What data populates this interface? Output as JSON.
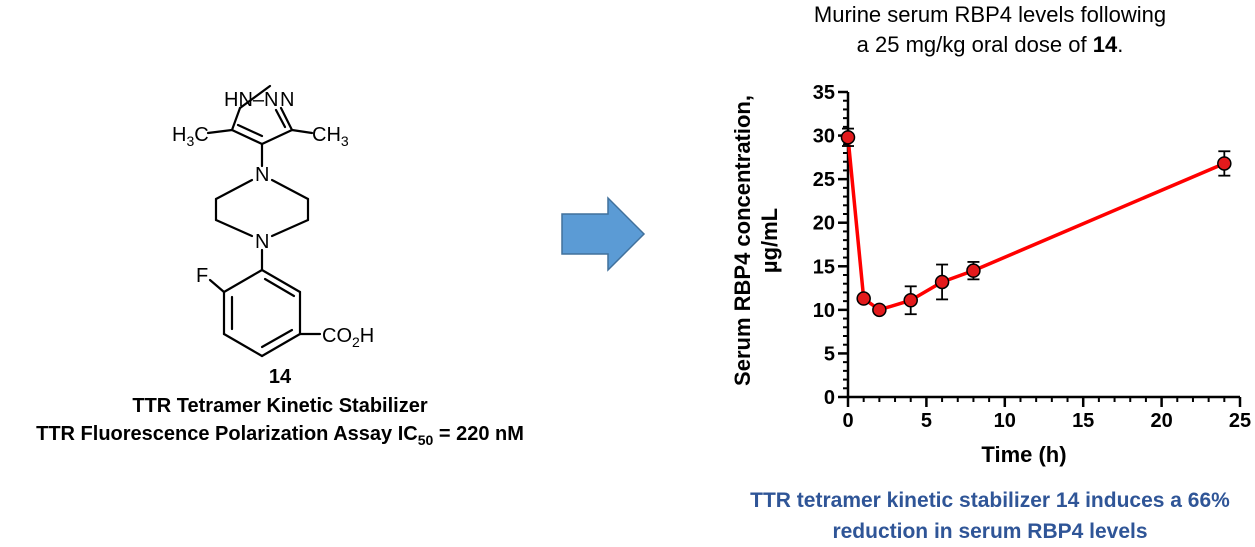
{
  "structure": {
    "atoms": {
      "pyrazole_nh_n": "HN–N",
      "methyl_left_h": "H",
      "methyl_left_sub": "3",
      "methyl_left_c": "C",
      "methyl_right_c": "CH",
      "methyl_right_sub": "3",
      "piperazine_n_top": "N",
      "piperazine_n_bottom": "N",
      "fluorine": "F",
      "acid_co": "CO",
      "acid_sub": "2",
      "acid_h": "H"
    },
    "compound_number": "14",
    "compound_class": "TTR Tetramer Kinetic Stabilizer",
    "assay_prefix": "TTR Fluorescence Polarization Assay IC",
    "assay_sub": "50",
    "assay_suffix": " = 220 nM"
  },
  "arrow_color": "#5b9bd5",
  "chart_data": {
    "type": "line",
    "title_line1": "Murine serum RBP4 levels following",
    "title_line2_prefix": "a 25 mg/kg oral dose of ",
    "title_line2_bold": "14",
    "title_line2_suffix": ".",
    "xlabel": "Time (h)",
    "ylabel_line1": "Serum RBP4 concentration,",
    "ylabel_line2": "µg/mL",
    "xlim": [
      0,
      25
    ],
    "ylim": [
      0,
      35
    ],
    "xticks": [
      0,
      5,
      10,
      15,
      20,
      25
    ],
    "yticks": [
      0,
      5,
      10,
      15,
      20,
      25,
      30,
      35
    ],
    "x_minor_step": 1,
    "y_minor_step": 1,
    "line_color": "#ff0000",
    "marker_fill": "#e31a1c",
    "series": [
      {
        "x": [
          0,
          1,
          2,
          4,
          6,
          8,
          24
        ],
        "y": [
          29.8,
          11.3,
          10.0,
          11.1,
          13.2,
          14.5,
          26.8
        ],
        "err": [
          1.0,
          0.0,
          0.3,
          1.6,
          2.0,
          1.0,
          1.4
        ]
      }
    ]
  },
  "conclusion": "TTR tetramer kinetic stabilizer 14 induces a 66% reduction in serum RBP4 levels"
}
